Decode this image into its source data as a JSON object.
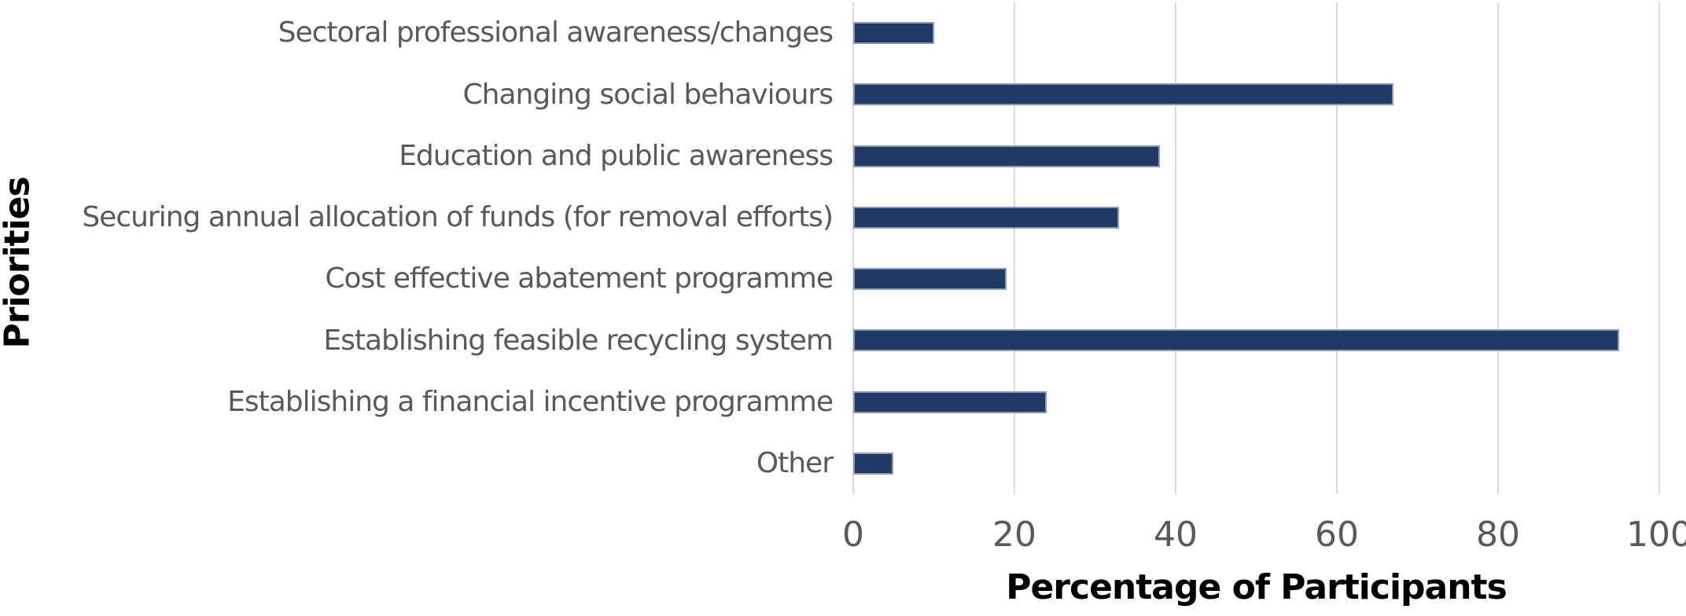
{
  "chart_data": {
    "type": "bar",
    "orientation": "horizontal",
    "title": "",
    "xlabel": "Percentage of Participants",
    "ylabel": "Priorities",
    "categories": [
      "Sectoral professional awareness/changes",
      "Changing social behaviours",
      "Education and public awareness",
      "Securing annual allocation of funds (for removal efforts)",
      "Cost effective abatement programme",
      "Establishing feasible recycling system",
      "Establishing a financial incentive programme",
      "Other"
    ],
    "values": [
      10,
      67,
      38,
      33,
      19,
      95,
      24,
      5
    ],
    "xlim": [
      0,
      100
    ],
    "xticks": [
      0,
      20,
      40,
      60,
      80,
      100
    ],
    "grid": "vertical-only",
    "legend": "none",
    "colors": {
      "bar_fill": "#1f3864",
      "bar_border": "#8a99b5",
      "gridline": "#d9d9d9",
      "tick_label": "#595959",
      "category_label": "#595959",
      "axis_title": "#000000",
      "background": "#ffffff"
    }
  }
}
